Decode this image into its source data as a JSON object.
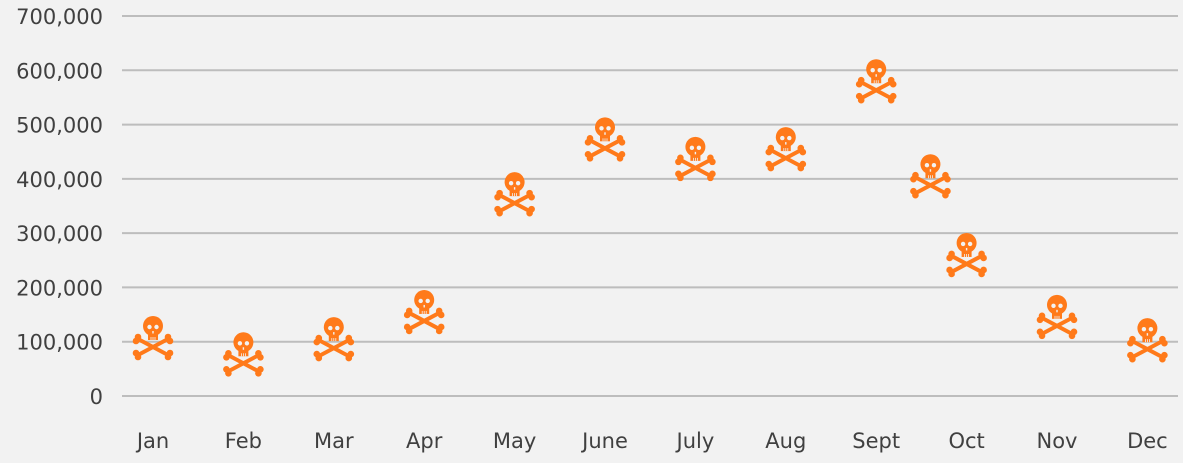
{
  "chart_data": {
    "type": "scatter",
    "title": "",
    "xlabel": "",
    "ylabel": "",
    "marker": "skull-and-crossbones-icon",
    "marker_color": "#FF7A1A",
    "grid": true,
    "ylim": [
      0,
      700000
    ],
    "yticks": [
      0,
      100000,
      200000,
      300000,
      400000,
      500000,
      600000,
      700000
    ],
    "ytick_labels": [
      "0",
      "100,000",
      "200,000",
      "300,000",
      "400,000",
      "500,000",
      "600,000",
      "700,000"
    ],
    "xticks": [
      1,
      2,
      3,
      4,
      5,
      6,
      7,
      8,
      9,
      10,
      11,
      12
    ],
    "xtick_labels": [
      "Jan",
      "Feb",
      "Mar",
      "Apr",
      "May",
      "June",
      "July",
      "Aug",
      "Sept",
      "Oct",
      "Nov",
      "Dec"
    ],
    "points": [
      {
        "x": 1,
        "y": 105000
      },
      {
        "x": 2,
        "y": 75000
      },
      {
        "x": 3,
        "y": 103000
      },
      {
        "x": 4,
        "y": 153000
      },
      {
        "x": 5,
        "y": 370000
      },
      {
        "x": 6,
        "y": 471000
      },
      {
        "x": 7,
        "y": 435000
      },
      {
        "x": 8,
        "y": 453000
      },
      {
        "x": 9,
        "y": 578000
      },
      {
        "x": 9.6,
        "y": 403000
      },
      {
        "x": 10,
        "y": 258000
      },
      {
        "x": 11,
        "y": 144000
      },
      {
        "x": 12,
        "y": 101000
      }
    ]
  }
}
